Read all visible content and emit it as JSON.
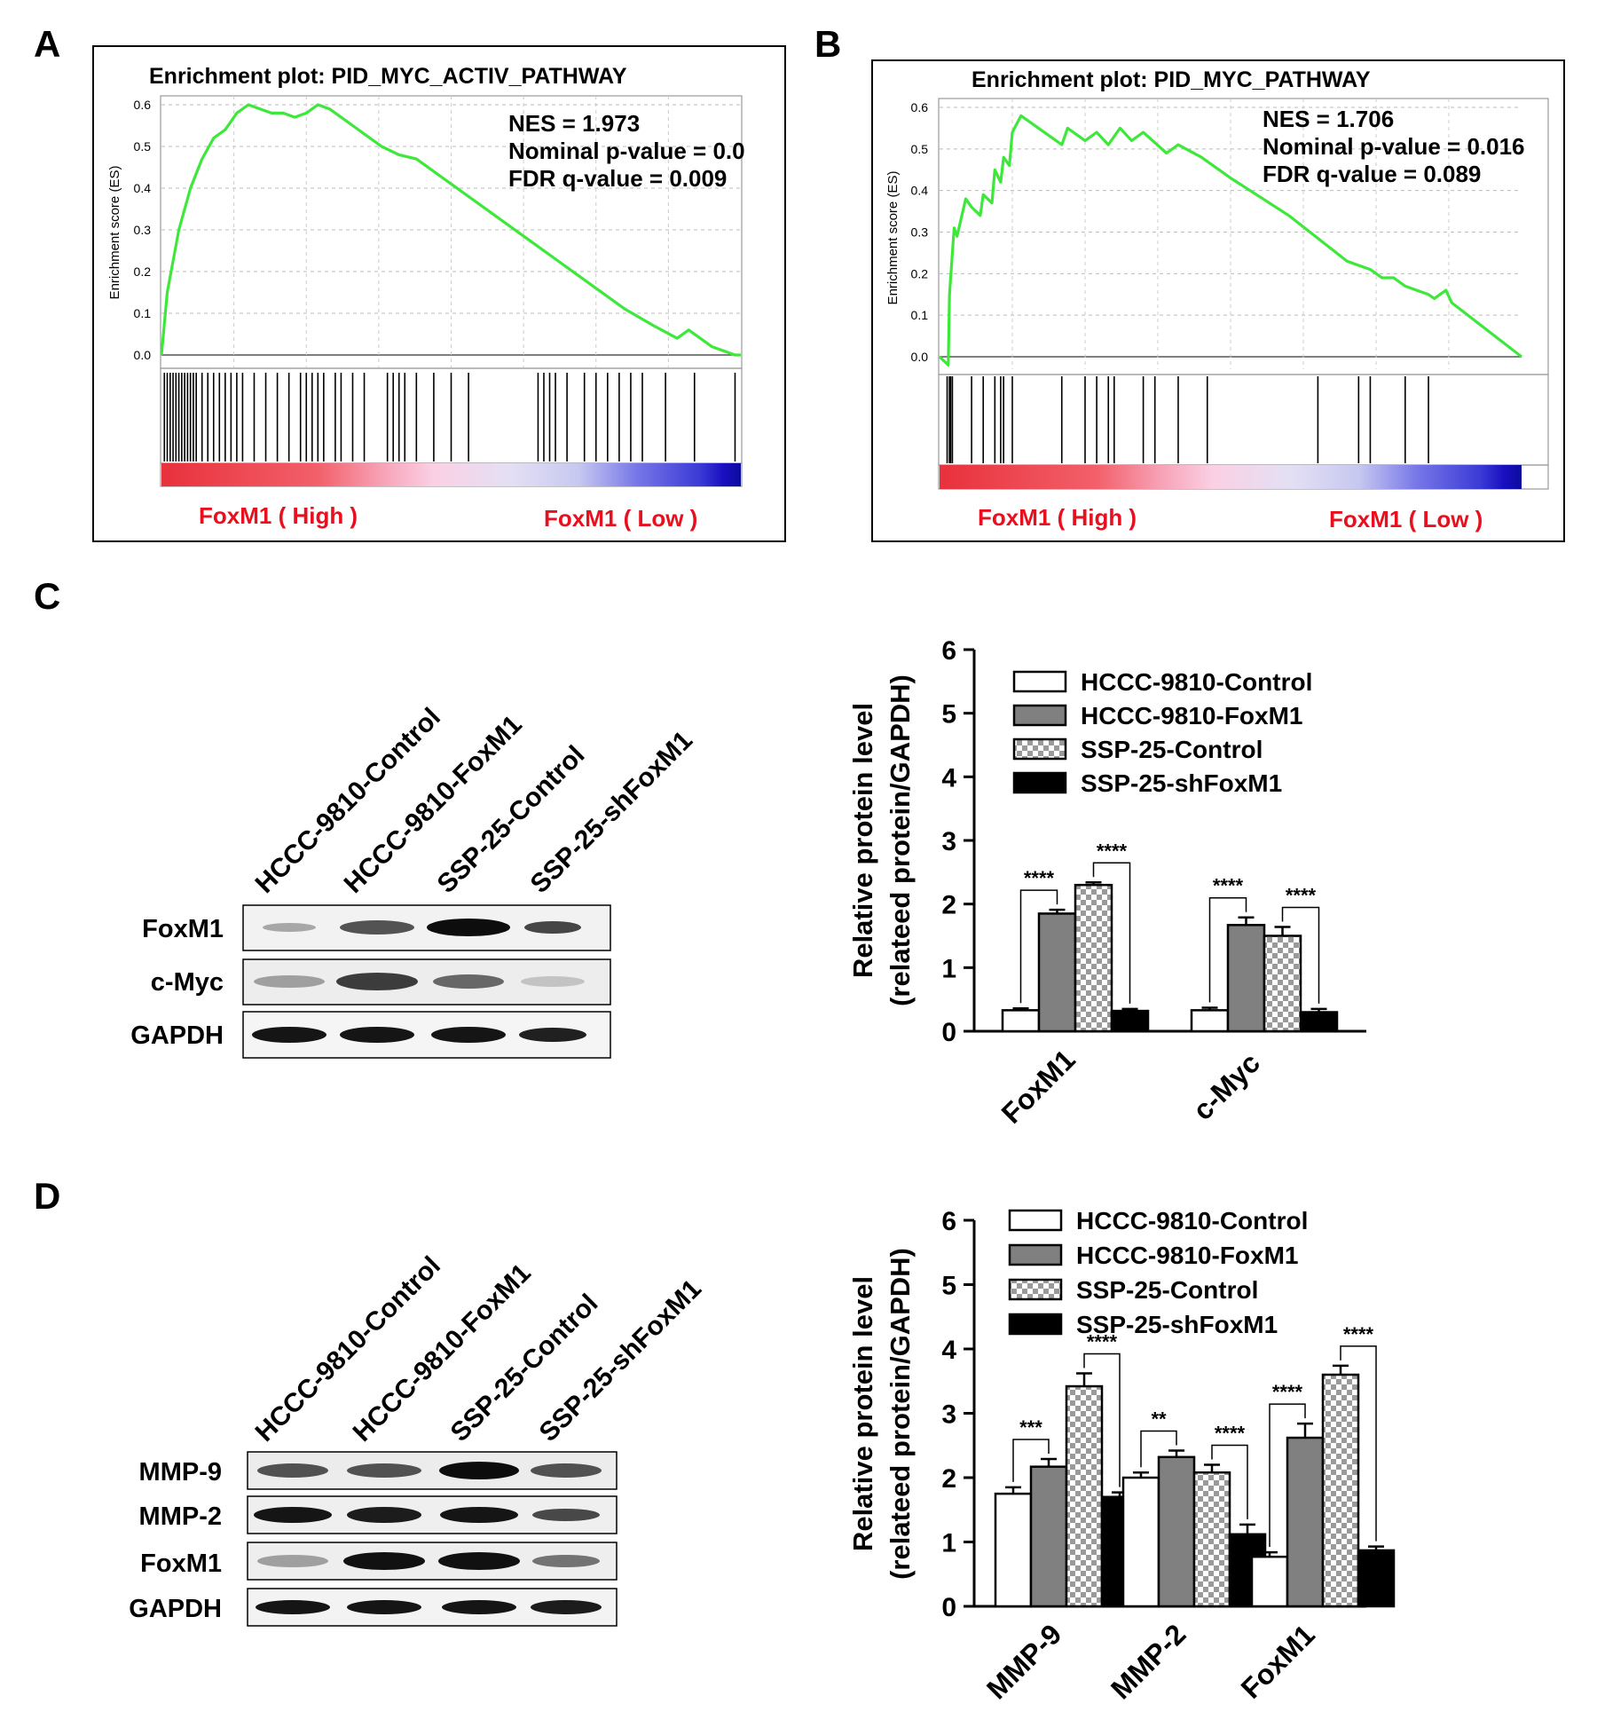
{
  "panels": {
    "A": {
      "letter": "A",
      "title": "Enrichment plot: PID_MYC_ACTIV_PATHWAY",
      "ylabel": "Enrichment score (ES)",
      "yticks": [
        "0.6",
        "0.5",
        "0.4",
        "0.3",
        "0.2",
        "0.1",
        "0.0"
      ],
      "stats": [
        "NES = 1.973",
        "Nominal p-value = 0.0",
        "FDR q-value = 0.009"
      ],
      "high_label": "FoxM1 ( High )",
      "low_label": "FoxM1 ( Low )"
    },
    "B": {
      "letter": "B",
      "title": "Enrichment plot: PID_MYC_PATHWAY",
      "ylabel": "Enrichment score (ES)",
      "yticks": [
        "0.6",
        "0.5",
        "0.4",
        "0.3",
        "0.2",
        "0.1",
        "0.0"
      ],
      "stats": [
        "NES = 1.706",
        "Nominal p-value = 0.016",
        "FDR q-value = 0.089"
      ],
      "high_label": "FoxM1 ( High )",
      "low_label": "FoxM1 ( Low )"
    },
    "C": {
      "letter": "C",
      "lanes": [
        "HCCC-9810-Control",
        "HCCC-9810-FoxM1",
        "SSP-25-Control",
        "SSP-25-shFoxM1"
      ],
      "blots": [
        "FoxM1",
        "c-Myc",
        "GAPDH"
      ]
    },
    "D": {
      "letter": "D",
      "lanes": [
        "HCCC-9810-Control",
        "HCCC-9810-FoxM1",
        "SSP-25-Control",
        "SSP-25-shFoxM1"
      ],
      "blots": [
        "MMP-9",
        "MMP-2",
        "FoxM1",
        "GAPDH"
      ]
    }
  },
  "colors": {
    "es_curve": "#3ee83a",
    "label_red": "#e8101e",
    "bar_control": "#ffffff",
    "bar_foxm1": "#808080",
    "bar_ssp_control": "checkered",
    "bar_shfoxm1": "#000000"
  },
  "chart_data": [
    {
      "panel": "A",
      "type": "line",
      "title": "Enrichment plot: PID_MYC_ACTIV_PATHWAY",
      "ylabel": "Enrichment score (ES)",
      "ylim": [
        0,
        0.6
      ],
      "grid": true,
      "series": [
        {
          "x": [
            0,
            0.01,
            0.03,
            0.05,
            0.07,
            0.09,
            0.11,
            0.13,
            0.15,
            0.17,
            0.19,
            0.21,
            0.23,
            0.25,
            0.27,
            0.29,
            0.31,
            0.33,
            0.35,
            0.38,
            0.41,
            0.44,
            0.47,
            0.5,
            0.55,
            0.6,
            0.65,
            0.7,
            0.75,
            0.8,
            0.85,
            0.89,
            0.91,
            0.95,
            0.99,
            1.0
          ],
          "y": [
            0,
            0.15,
            0.3,
            0.4,
            0.47,
            0.52,
            0.54,
            0.58,
            0.6,
            0.59,
            0.58,
            0.58,
            0.57,
            0.58,
            0.6,
            0.59,
            0.57,
            0.55,
            0.53,
            0.5,
            0.48,
            0.47,
            0.44,
            0.41,
            0.36,
            0.31,
            0.26,
            0.21,
            0.16,
            0.11,
            0.07,
            0.04,
            0.06,
            0.02,
            0.0,
            0.0
          ]
        }
      ],
      "hits": [
        0.005,
        0.01,
        0.015,
        0.02,
        0.025,
        0.03,
        0.035,
        0.04,
        0.045,
        0.05,
        0.055,
        0.06,
        0.07,
        0.08,
        0.09,
        0.1,
        0.11,
        0.12,
        0.13,
        0.14,
        0.16,
        0.18,
        0.2,
        0.22,
        0.24,
        0.25,
        0.26,
        0.27,
        0.28,
        0.3,
        0.31,
        0.33,
        0.35,
        0.39,
        0.4,
        0.41,
        0.42,
        0.44,
        0.47,
        0.5,
        0.53,
        0.65,
        0.66,
        0.67,
        0.68,
        0.7,
        0.73,
        0.75,
        0.77,
        0.79,
        0.81,
        0.83,
        0.87,
        0.92,
        0.99
      ],
      "gradient_label_high": "FoxM1 ( High )",
      "gradient_label_low": "FoxM1 ( Low )",
      "annotations": [
        "NES = 1.973",
        "Nominal p-value = 0.0",
        "FDR q-value = 0.009"
      ]
    },
    {
      "panel": "B",
      "type": "line",
      "title": "Enrichment plot: PID_MYC_PATHWAY",
      "ylabel": "Enrichment score (ES)",
      "ylim": [
        0,
        0.6
      ],
      "grid": true,
      "series": [
        {
          "x": [
            0,
            0.015,
            0.017,
            0.025,
            0.03,
            0.045,
            0.055,
            0.07,
            0.075,
            0.09,
            0.095,
            0.105,
            0.11,
            0.12,
            0.125,
            0.14,
            0.21,
            0.22,
            0.25,
            0.27,
            0.29,
            0.31,
            0.33,
            0.35,
            0.39,
            0.41,
            0.45,
            0.46,
            0.5,
            0.6,
            0.7,
            0.72,
            0.74,
            0.76,
            0.78,
            0.8,
            0.82,
            0.84,
            0.85,
            0.87,
            0.88,
            1.0
          ],
          "y": [
            0.0,
            -0.02,
            0.15,
            0.31,
            0.29,
            0.38,
            0.36,
            0.34,
            0.39,
            0.37,
            0.45,
            0.42,
            0.48,
            0.46,
            0.54,
            0.58,
            0.51,
            0.55,
            0.52,
            0.54,
            0.51,
            0.55,
            0.52,
            0.54,
            0.49,
            0.51,
            0.48,
            0.47,
            0.43,
            0.34,
            0.23,
            0.22,
            0.21,
            0.19,
            0.19,
            0.17,
            0.16,
            0.15,
            0.14,
            0.16,
            0.13,
            0.0
          ]
        }
      ],
      "hits": [
        0.013,
        0.017,
        0.019,
        0.022,
        0.055,
        0.075,
        0.095,
        0.105,
        0.11,
        0.125,
        0.21,
        0.25,
        0.27,
        0.29,
        0.3,
        0.35,
        0.37,
        0.41,
        0.46,
        0.65,
        0.72,
        0.74,
        0.8,
        0.84
      ],
      "gradient_label_high": "FoxM1 ( High )",
      "gradient_label_low": "FoxM1 ( Low )",
      "annotations": [
        "NES = 1.706",
        "Nominal p-value = 0.016",
        "FDR q-value = 0.089"
      ]
    },
    {
      "panel": "C",
      "type": "bar",
      "ylabel": [
        "Relative protein level",
        "(relateed protein/GAPDH)"
      ],
      "ylim": [
        0,
        6
      ],
      "yticks": [
        "0",
        "1",
        "2",
        "3",
        "4",
        "5",
        "6"
      ],
      "categories": [
        "FoxM1",
        "c-Myc"
      ],
      "series": [
        {
          "name": "HCCC-9810-Control",
          "values": [
            0.33,
            0.33
          ],
          "errors": [
            0.03,
            0.04
          ]
        },
        {
          "name": "HCCC-9810-FoxM1",
          "values": [
            1.85,
            1.67
          ],
          "errors": [
            0.06,
            0.12
          ]
        },
        {
          "name": "SSP-25-Control",
          "values": [
            2.3,
            1.5
          ],
          "errors": [
            0.04,
            0.14
          ]
        },
        {
          "name": "SSP-25-shFoxM1",
          "values": [
            0.32,
            0.3
          ],
          "errors": [
            0.03,
            0.05
          ]
        }
      ],
      "legend": "top-right",
      "significance": [
        {
          "category": 0,
          "from": 0,
          "to": 1,
          "label": "****"
        },
        {
          "category": 0,
          "from": 2,
          "to": 3,
          "label": "****"
        },
        {
          "category": 1,
          "from": 0,
          "to": 1,
          "label": "****"
        },
        {
          "category": 1,
          "from": 2,
          "to": 3,
          "label": "****"
        }
      ]
    },
    {
      "panel": "D",
      "type": "bar",
      "ylabel": [
        "Relative protein level",
        "(relateed protein/GAPDH)"
      ],
      "ylim": [
        0,
        6
      ],
      "yticks": [
        "0",
        "1",
        "2",
        "3",
        "4",
        "5",
        "6"
      ],
      "categories": [
        "MMP-9",
        "MMP-2",
        "FoxM1"
      ],
      "series": [
        {
          "name": "HCCC-9810-Control",
          "values": [
            1.75,
            2.0,
            0.77
          ],
          "errors": [
            0.1,
            0.08,
            0.07
          ]
        },
        {
          "name": "HCCC-9810-FoxM1",
          "values": [
            2.17,
            2.32,
            2.62
          ],
          "errors": [
            0.12,
            0.1,
            0.22
          ]
        },
        {
          "name": "SSP-25-Control",
          "values": [
            3.42,
            2.08,
            3.6
          ],
          "errors": [
            0.2,
            0.12,
            0.14
          ]
        },
        {
          "name": "SSP-25-shFoxM1",
          "values": [
            1.7,
            1.12,
            0.87
          ],
          "errors": [
            0.07,
            0.15,
            0.06
          ]
        }
      ],
      "legend": "top-right",
      "significance": [
        {
          "category": 0,
          "from": 0,
          "to": 1,
          "label": "***"
        },
        {
          "category": 0,
          "from": 2,
          "to": 3,
          "label": "****"
        },
        {
          "category": 1,
          "from": 0,
          "to": 1,
          "label": "**"
        },
        {
          "category": 1,
          "from": 2,
          "to": 3,
          "label": "****"
        },
        {
          "category": 2,
          "from": 0,
          "to": 1,
          "label": "****"
        },
        {
          "category": 2,
          "from": 2,
          "to": 3,
          "label": "****"
        }
      ]
    }
  ]
}
